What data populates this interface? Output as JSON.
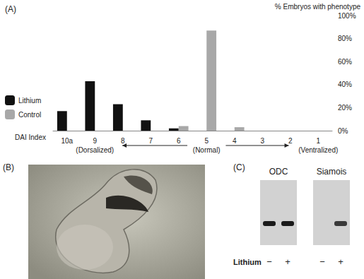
{
  "chart_data": {
    "type": "bar",
    "title": "(A)",
    "x_label": "DAI Index",
    "y_label": "% Embryos with phenotype",
    "categories": [
      "10a",
      "9",
      "8",
      "7",
      "6",
      "5",
      "4",
      "3",
      "2",
      "1"
    ],
    "annotations": [
      {
        "x": "9",
        "text": "(Dorsalized)"
      },
      {
        "x": "5",
        "text": "(Normal)"
      },
      {
        "x": "1",
        "text": "(Ventralized)"
      }
    ],
    "series": [
      {
        "name": "Lithium",
        "color": "#111111",
        "values": [
          17,
          43,
          23,
          9,
          2,
          0,
          0,
          0,
          0,
          0
        ]
      },
      {
        "name": "Control",
        "color": "#a8a8a8",
        "values": [
          0,
          0,
          0,
          0,
          4,
          87,
          3,
          0,
          0,
          0
        ]
      }
    ],
    "ylim": [
      0,
      100
    ],
    "yticks": [
      {
        "value": 0,
        "label": "0%"
      },
      {
        "value": 20,
        "label": "20%"
      },
      {
        "value": 40,
        "label": "40%"
      },
      {
        "value": 60,
        "label": "60%"
      },
      {
        "value": 80,
        "label": "80%"
      },
      {
        "value": 100,
        "label": "100%"
      }
    ],
    "grid": false,
    "legend": "left"
  },
  "panel_b": {
    "label": "(B)"
  },
  "panel_c": {
    "label": "(C)",
    "row_label": "Lithium",
    "lanes": [
      "−",
      "+"
    ],
    "gels": [
      {
        "name": "ODC",
        "bands": [
          true,
          true
        ]
      },
      {
        "name": "Siamois",
        "bands": [
          false,
          true
        ]
      }
    ]
  }
}
